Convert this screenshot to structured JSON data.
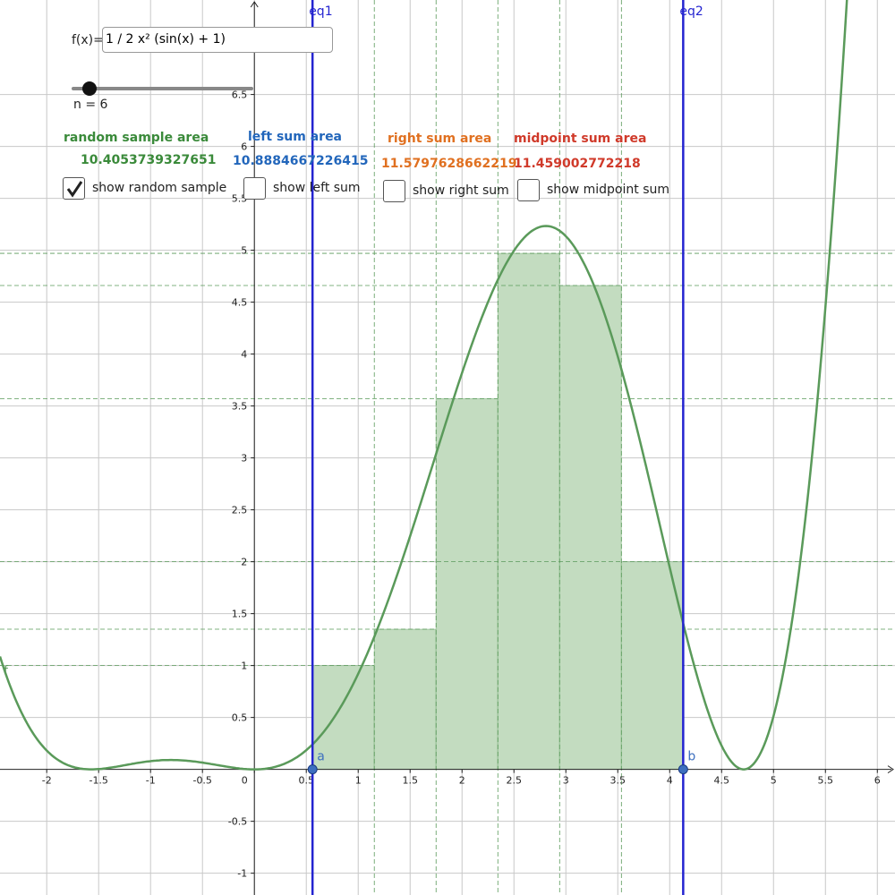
{
  "input": {
    "label": "f(x)=",
    "value": "1 / 2 x² (sin(x) + 1)"
  },
  "slider": {
    "label": "n = 6"
  },
  "areas": [
    {
      "title": "random sample area",
      "value": 10.4053739327651,
      "color": "#3a8a3a"
    },
    {
      "title": "left sum area",
      "value": 10.8884667226415,
      "color": "#2266bb"
    },
    {
      "title": "right sum area",
      "value": 11.5797628662219,
      "color": "#e07020"
    },
    {
      "title": "midpoint sum area",
      "value": 11.459002772218,
      "color": "#d03a2a"
    }
  ],
  "checkboxes": [
    {
      "label": "show random sample",
      "checked": true
    },
    {
      "label": "show left sum",
      "checked": false
    },
    {
      "label": "show right sum",
      "checked": false
    },
    {
      "label": "show midpoint sum",
      "checked": false
    }
  ],
  "graph": {
    "xlim": [
      -2.45,
      6.17
    ],
    "ylim": [
      -1.21,
      7.41
    ],
    "xticks": [
      -2,
      -1.5,
      -1,
      -0.5,
      0,
      0.5,
      1,
      1.5,
      2,
      2.5,
      3,
      3.5,
      4,
      4.5,
      5,
      5.5,
      6
    ],
    "yticks": [
      -1,
      -0.5,
      0.5,
      1,
      1.5,
      2,
      2.5,
      3,
      3.5,
      4,
      4.5,
      5,
      5.5,
      6,
      6.5
    ],
    "function_label": "f",
    "lines": [
      {
        "label": "eq1",
        "x": 0.56
      },
      {
        "label": "eq2",
        "x": 4.13
      }
    ],
    "points": [
      {
        "label": "a",
        "x": 0.56
      },
      {
        "label": "b",
        "x": 4.13
      }
    ],
    "rect_edges": [
      0.56,
      1.155,
      1.75,
      2.345,
      2.94,
      3.535,
      4.13
    ],
    "rect_heights": [
      1.0,
      1.35,
      3.57,
      4.97,
      4.66,
      2.0
    ],
    "curve_color": "#5a9a5a",
    "rect_color": "#c3dcc0",
    "line_color": "#2424d0",
    "point_color": "#3d6fbf"
  }
}
